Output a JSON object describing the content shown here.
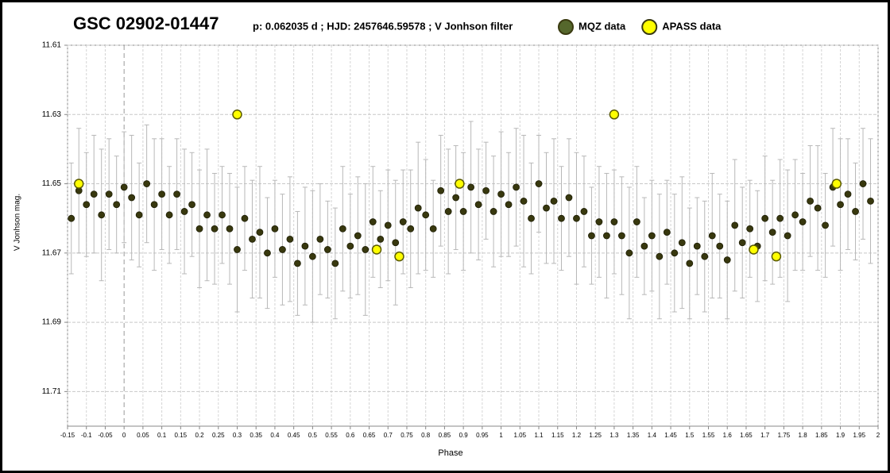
{
  "chart_data": {
    "type": "scatter",
    "title": "GSC 02902-01447",
    "subtitle": "p: 0.062035 d ; HJD: 2457646.59578 ;  V Jonhson filter",
    "x_label": "Phase",
    "y_label": "V Jonhson mag.",
    "xlim": [
      -0.15,
      2
    ],
    "ylim": [
      11.72,
      11.61
    ],
    "xticks": [
      -0.15,
      -0.1,
      -0.05,
      0,
      0.05,
      0.1,
      0.15,
      0.2,
      0.25,
      0.3,
      0.35,
      0.4,
      0.45,
      0.5,
      0.55,
      0.6,
      0.65,
      0.7,
      0.75,
      0.8,
      0.85,
      0.9,
      0.95,
      1,
      1.05,
      1.1,
      1.15,
      1.2,
      1.25,
      1.3,
      1.35,
      1.4,
      1.45,
      1.5,
      1.55,
      1.6,
      1.65,
      1.7,
      1.75,
      1.8,
      1.85,
      1.9,
      1.95,
      2
    ],
    "yticks": [
      11.61,
      11.63,
      11.65,
      11.67,
      11.69,
      11.71
    ],
    "grid": true,
    "legend": "top",
    "series": [
      {
        "name": "MQZ data",
        "color": "#38380e",
        "legend_color": "#55672c",
        "x": [
          -0.14,
          -0.12,
          -0.1,
          -0.08,
          -0.06,
          -0.04,
          -0.02,
          0,
          0.02,
          0.04,
          0.06,
          0.08,
          0.1,
          0.12,
          0.14,
          0.16,
          0.18,
          0.2,
          0.22,
          0.24,
          0.26,
          0.28,
          0.3,
          0.32,
          0.34,
          0.36,
          0.38,
          0.4,
          0.42,
          0.44,
          0.46,
          0.48,
          0.5,
          0.52,
          0.54,
          0.56,
          0.58,
          0.6,
          0.62,
          0.64,
          0.66,
          0.68,
          0.7,
          0.72,
          0.74,
          0.76,
          0.78,
          0.8,
          0.82,
          0.84,
          0.86,
          0.88,
          0.9,
          0.92,
          0.94,
          0.96,
          0.98,
          1,
          1.02,
          1.04,
          1.06,
          1.08,
          1.1,
          1.12,
          1.14,
          1.16,
          1.18,
          1.2,
          1.22,
          1.24,
          1.26,
          1.28,
          1.3,
          1.32,
          1.34,
          1.36,
          1.38,
          1.4,
          1.42,
          1.44,
          1.46,
          1.48,
          1.5,
          1.52,
          1.54,
          1.56,
          1.58,
          1.6,
          1.62,
          1.64,
          1.66,
          1.68,
          1.7,
          1.72,
          1.74,
          1.76,
          1.78,
          1.8,
          1.82,
          1.84,
          1.86,
          1.88,
          1.9,
          1.92,
          1.94,
          1.96,
          1.98
        ],
        "values": [
          11.66,
          11.652,
          11.656,
          11.653,
          11.659,
          11.653,
          11.656,
          11.651,
          11.654,
          11.659,
          11.65,
          11.656,
          11.653,
          11.659,
          11.653,
          11.658,
          11.656,
          11.663,
          11.659,
          11.663,
          11.659,
          11.663,
          11.669,
          11.66,
          11.666,
          11.664,
          11.67,
          11.663,
          11.669,
          11.666,
          11.673,
          11.668,
          11.671,
          11.666,
          11.669,
          11.673,
          11.663,
          11.668,
          11.665,
          11.669,
          11.661,
          11.666,
          11.662,
          11.667,
          11.661,
          11.663,
          11.657,
          11.659,
          11.663,
          11.652,
          11.658,
          11.654,
          11.658,
          11.651,
          11.656,
          11.652,
          11.658,
          11.653,
          11.656,
          11.651,
          11.655,
          11.66,
          11.65,
          11.657,
          11.655,
          11.66,
          11.654,
          11.66,
          11.658,
          11.665,
          11.661,
          11.665,
          11.661,
          11.665,
          11.67,
          11.661,
          11.668,
          11.665,
          11.671,
          11.664,
          11.67,
          11.667,
          11.673,
          11.668,
          11.671,
          11.665,
          11.668,
          11.672,
          11.662,
          11.667,
          11.663,
          11.668,
          11.66,
          11.664,
          11.66,
          11.665,
          11.659,
          11.661,
          11.655,
          11.657,
          11.662,
          11.651,
          11.656,
          11.653,
          11.658,
          11.65,
          11.655
        ],
        "errors": [
          0.016,
          0.018,
          0.015,
          0.017,
          0.019,
          0.016,
          0.014,
          0.016,
          0.018,
          0.015,
          0.017,
          0.019,
          0.016,
          0.014,
          0.016,
          0.018,
          0.015,
          0.017,
          0.019,
          0.016,
          0.014,
          0.016,
          0.018,
          0.015,
          0.017,
          0.019,
          0.016,
          0.014,
          0.016,
          0.018,
          0.015,
          0.017,
          0.019,
          0.016,
          0.014,
          0.016,
          0.018,
          0.015,
          0.017,
          0.019,
          0.016,
          0.014,
          0.016,
          0.018,
          0.015,
          0.017,
          0.019,
          0.016,
          0.014,
          0.016,
          0.018,
          0.015,
          0.017,
          0.019,
          0.016,
          0.014,
          0.016,
          0.018,
          0.015,
          0.017,
          0.019,
          0.016,
          0.014,
          0.016,
          0.018,
          0.015,
          0.017,
          0.019,
          0.016,
          0.014,
          0.016,
          0.018,
          0.015,
          0.017,
          0.019,
          0.016,
          0.014,
          0.016,
          0.018,
          0.015,
          0.017,
          0.019,
          0.016,
          0.014,
          0.016,
          0.018,
          0.015,
          0.017,
          0.019,
          0.016,
          0.014,
          0.016,
          0.018,
          0.015,
          0.017,
          0.019,
          0.016,
          0.014,
          0.016,
          0.018,
          0.015,
          0.017,
          0.019,
          0.016,
          0.014,
          0.016,
          0.018
        ]
      },
      {
        "name": "APASS  data",
        "color": "#ffff00",
        "legend_color": "#ffff00",
        "x": [
          -0.12,
          0.3,
          0.67,
          0.73,
          0.89,
          1.3,
          1.67,
          1.73,
          1.89
        ],
        "values": [
          11.65,
          11.63,
          11.669,
          11.671,
          11.65,
          11.63,
          11.669,
          11.671,
          11.65
        ]
      }
    ]
  }
}
